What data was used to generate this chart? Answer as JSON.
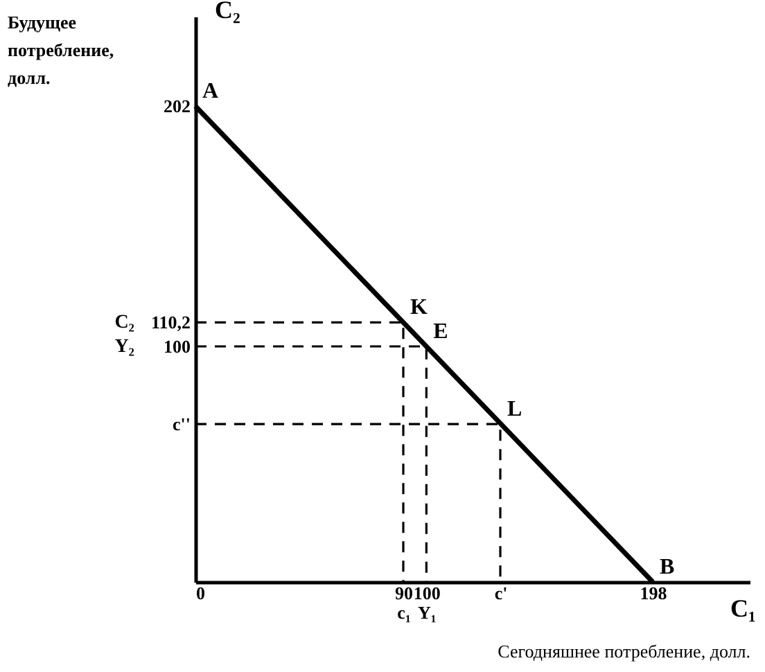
{
  "chart_data": {
    "type": "line",
    "xlabel": "Сегодняшнее потребление, долл.",
    "ylabel": "Будущее потребление, долл.",
    "xlim": [
      0,
      240
    ],
    "ylim": [
      0,
      240
    ],
    "xticks": [
      0,
      {
        "value": 90,
        "label": "90\nc₁"
      },
      {
        "value": 100,
        "label": "100\nY₁"
      },
      {
        "value": 132,
        "label": "c'"
      },
      198
    ],
    "yticks": [
      202,
      {
        "value": 110.2,
        "label": "110,2"
      },
      100,
      {
        "value": 67,
        "label": "c''"
      }
    ],
    "grid": false,
    "series": [
      {
        "color": "#000000",
        "x": [
          0,
          198
        ],
        "values": [
          202,
          0
        ],
        "line_style": "solid"
      },
      {
        "color": "#000000",
        "x": [
          0,
          90,
          90
        ],
        "values": [
          110.2,
          110.2,
          0
        ],
        "line_style": "dashed"
      },
      {
        "color": "#000000",
        "x": [
          0,
          100,
          100
        ],
        "values": [
          100,
          100,
          0
        ],
        "line_style": "dashed"
      },
      {
        "color": "#000000",
        "x": [
          0,
          132,
          132
        ],
        "values": [
          67,
          67,
          0
        ],
        "line_style": "dashed"
      }
    ],
    "annotations": [
      "C₂",
      "C₁",
      "C₂",
      "Y₂",
      {
        "text": "A",
        "x": 0,
        "y": 202
      },
      {
        "text": "K",
        "x": 90,
        "y": 110.2
      },
      {
        "text": "E",
        "x": 100,
        "y": 100
      },
      {
        "text": "L",
        "x": 132,
        "y": 67
      },
      {
        "text": "B",
        "x": 198,
        "y": 0
      }
    ]
  }
}
